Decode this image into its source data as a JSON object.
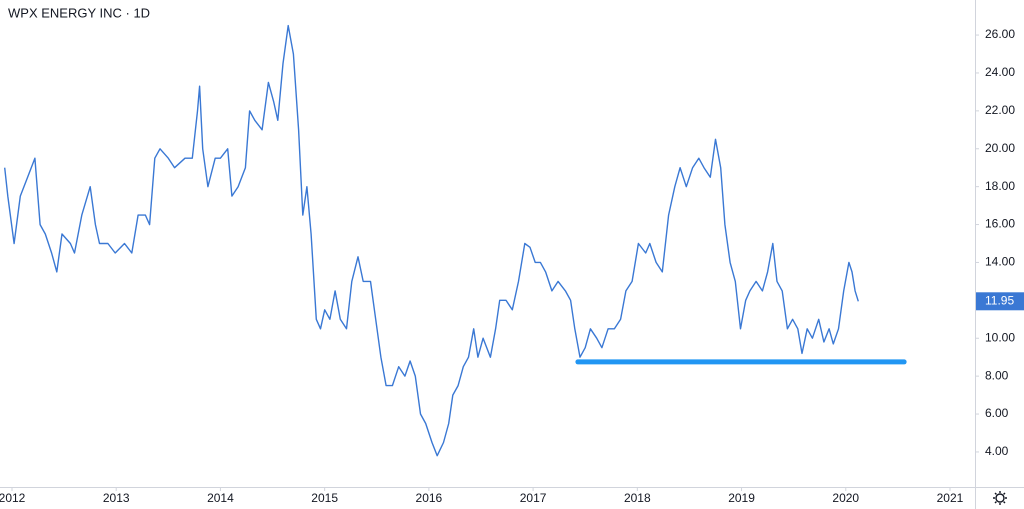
{
  "chart_data": {
    "type": "line",
    "title": "WPX ENERGY INC · 1D",
    "x": [
      2011.93,
      2011.96,
      2012.02,
      2012.08,
      2012.15,
      2012.22,
      2012.27,
      2012.32,
      2012.38,
      2012.43,
      2012.48,
      2012.56,
      2012.6,
      2012.67,
      2012.75,
      2012.8,
      2012.84,
      2012.92,
      2012.99,
      2013.08,
      2013.15,
      2013.21,
      2013.28,
      2013.32,
      2013.37,
      2013.42,
      2013.5,
      2013.56,
      2013.66,
      2013.73,
      2013.78,
      2013.8,
      2013.83,
      2013.88,
      2013.95,
      2014.0,
      2014.07,
      2014.11,
      2014.17,
      2014.24,
      2014.28,
      2014.33,
      2014.4,
      2014.46,
      2014.51,
      2014.55,
      2014.6,
      2014.65,
      2014.7,
      2014.75,
      2014.79,
      2014.83,
      2014.87,
      2014.92,
      2014.96,
      2015.0,
      2015.05,
      2015.1,
      2015.15,
      2015.21,
      2015.26,
      2015.32,
      2015.37,
      2015.44,
      2015.49,
      2015.54,
      2015.59,
      2015.65,
      2015.71,
      2015.77,
      2015.82,
      2015.87,
      2015.92,
      2015.97,
      2016.03,
      2016.08,
      2016.14,
      2016.19,
      2016.23,
      2016.28,
      2016.33,
      2016.38,
      2016.43,
      2016.47,
      2016.52,
      2016.59,
      2016.64,
      2016.68,
      2016.74,
      2016.8,
      2016.86,
      2016.92,
      2016.97,
      2017.02,
      2017.07,
      2017.12,
      2017.18,
      2017.24,
      2017.31,
      2017.36,
      2017.4,
      2017.45,
      2017.5,
      2017.55,
      2017.61,
      2017.66,
      2017.72,
      2017.78,
      2017.84,
      2017.89,
      2017.95,
      2018.01,
      2018.08,
      2018.12,
      2018.18,
      2018.24,
      2018.3,
      2018.36,
      2018.41,
      2018.47,
      2018.53,
      2018.59,
      2018.64,
      2018.7,
      2018.75,
      2018.8,
      2018.84,
      2018.89,
      2018.94,
      2018.99,
      2019.04,
      2019.08,
      2019.14,
      2019.2,
      2019.25,
      2019.3,
      2019.34,
      2019.39,
      2019.44,
      2019.49,
      2019.54,
      2019.58,
      2019.63,
      2019.68,
      2019.74,
      2019.79,
      2019.84,
      2019.88,
      2019.93,
      2019.98,
      2020.03,
      2020.06,
      2020.09,
      2020.12
    ],
    "series": [
      {
        "color": "#3a78d4",
        "values": [
          19,
          17.5,
          15,
          17.5,
          18.5,
          19.5,
          16,
          15.5,
          14.5,
          13.5,
          15.5,
          15,
          14.5,
          16.5,
          18,
          16,
          15,
          15,
          14.5,
          15,
          14.5,
          16.5,
          16.5,
          16,
          19.5,
          20,
          19.5,
          19,
          19.5,
          19.5,
          22,
          23.3,
          20,
          18,
          19.5,
          19.5,
          20,
          17.5,
          18,
          19,
          22,
          21.5,
          21,
          23.5,
          22.5,
          21.5,
          24.5,
          26.5,
          25,
          21,
          16.5,
          18,
          15.5,
          11,
          10.5,
          11.5,
          11,
          12.5,
          11,
          10.5,
          13,
          14.3,
          13,
          13,
          11,
          9,
          7.5,
          7.5,
          8.5,
          8,
          8.8,
          8,
          6,
          5.5,
          4.5,
          3.8,
          4.5,
          5.5,
          7,
          7.5,
          8.5,
          9,
          10.5,
          9,
          10,
          9,
          10.5,
          12,
          12,
          11.5,
          13,
          15,
          14.8,
          14,
          14,
          13.5,
          12.5,
          13,
          12.5,
          12,
          10.5,
          9,
          9.5,
          10.5,
          10,
          9.5,
          10.5,
          10.5,
          11,
          12.5,
          13,
          15,
          14.5,
          15,
          14,
          13.5,
          16.5,
          18,
          19,
          18,
          19,
          19.5,
          19,
          18.5,
          20.5,
          19,
          16,
          14,
          13,
          10.5,
          12,
          12.5,
          13,
          12.5,
          13.5,
          15,
          13,
          12.5,
          10.5,
          11,
          10.5,
          9.2,
          10.5,
          10,
          11,
          9.8,
          10.5,
          9.7,
          10.5,
          12.5,
          14,
          13.5,
          12.5,
          11.95
        ]
      }
    ],
    "last_value": 11.95,
    "support_line": {
      "x": [
        2017.43,
        2020.56
      ],
      "y": 8.75,
      "color": "#2196f3"
    },
    "xlim": [
      2011.885,
      2021.24
    ],
    "xticks": [
      2012,
      2013,
      2014,
      2015,
      2016,
      2017,
      2018,
      2019,
      2020,
      2021
    ],
    "ylim": [
      2.15,
      27.85
    ],
    "yticks": [
      {
        "value": 4,
        "label": "4.00"
      },
      {
        "value": 6,
        "label": "6.00"
      },
      {
        "value": 8,
        "label": "8.00"
      },
      {
        "value": 10,
        "label": "10.00"
      },
      {
        "value": 12,
        "label": "12.00"
      },
      {
        "value": 14,
        "label": "14.00"
      },
      {
        "value": 16,
        "label": "16.00"
      },
      {
        "value": 18,
        "label": "18.00"
      },
      {
        "value": 20,
        "label": "20.00"
      },
      {
        "value": 22,
        "label": "22.00"
      },
      {
        "value": 24,
        "label": "24.00"
      },
      {
        "value": 26,
        "label": "26.00"
      }
    ]
  }
}
